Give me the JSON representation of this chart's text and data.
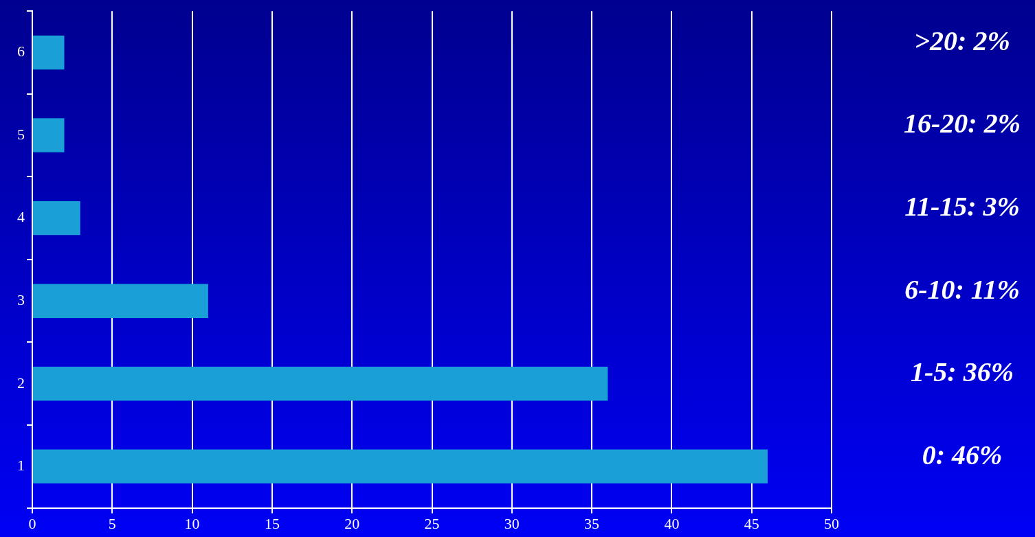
{
  "chart_data": {
    "type": "bar",
    "orientation": "horizontal",
    "categories": [
      "6",
      "5",
      "4",
      "3",
      "2",
      "1"
    ],
    "values": [
      2,
      2,
      3,
      11,
      36,
      46
    ],
    "color": "#1a9fd6",
    "xlim": [
      0,
      50
    ],
    "xticks": [
      0,
      5,
      10,
      15,
      20,
      25,
      30,
      35,
      40,
      45,
      50
    ],
    "grid": "x",
    "legend": false,
    "annotations": [
      ">20: 2%",
      "16-20: 2%",
      "11-15: 3%",
      "6-10: 11%",
      "1-5: 36%",
      "0: 46%"
    ]
  }
}
